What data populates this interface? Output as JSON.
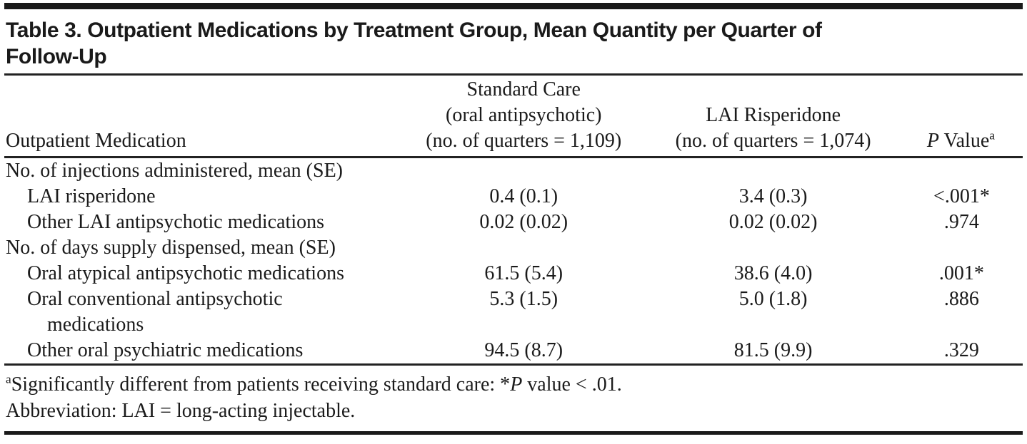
{
  "colors": {
    "ink": "#1a1a1a",
    "background": "#ffffff"
  },
  "doc": {
    "title_lines": [
      "Table 3. Outpatient Medications by Treatment Group, Mean Quantity per Quarter of",
      "Follow-Up"
    ],
    "header": {
      "row_label": "Outpatient Medication",
      "group1": {
        "lines": [
          "Standard Care",
          "(oral antipsychotic)",
          "(no. of quarters = 1,109)"
        ]
      },
      "group2": {
        "lines": [
          "LAI Risperidone",
          "(no. of quarters = 1,074)"
        ]
      },
      "pvalue": {
        "italic": "P",
        "rest": " Value",
        "sup": "a"
      }
    },
    "rows": [
      {
        "kind": "section",
        "label": "No. of injections administered, mean (SE)"
      },
      {
        "kind": "item",
        "label": "LAI risperidone",
        "standard_care": "0.4 (0.1)",
        "lai_risperidone": "3.4 (0.3)",
        "p_value": "<.001*"
      },
      {
        "kind": "item",
        "label": "Other LAI antipsychotic medications",
        "standard_care": "0.02 (0.02)",
        "lai_risperidone": "0.02 (0.02)",
        "p_value": ".974"
      },
      {
        "kind": "section",
        "label": "No. of days supply dispensed, mean (SE)"
      },
      {
        "kind": "item",
        "label": "Oral atypical antipsychotic medications",
        "standard_care": "61.5 (5.4)",
        "lai_risperidone": "38.6 (4.0)",
        "p_value": ".001*"
      },
      {
        "kind": "item",
        "label": "Oral conventional antipsychotic",
        "label2": "medications",
        "standard_care": "5.3 (1.5)",
        "lai_risperidone": "5.0 (1.8)",
        "p_value": ".886"
      },
      {
        "kind": "item",
        "label": "Other oral psychiatric medications",
        "standard_care": "94.5 (8.7)",
        "lai_risperidone": "81.5 (9.9)",
        "p_value": ".329"
      }
    ],
    "footnotes": {
      "a": {
        "sup": "a",
        "pre": "Significantly different from patients receiving standard care: *",
        "italic": "P",
        "post": " value < .01."
      },
      "abbrev": "Abbreviation: LAI = long-acting injectable."
    }
  }
}
